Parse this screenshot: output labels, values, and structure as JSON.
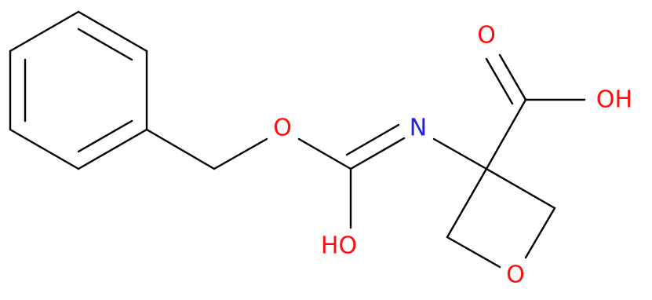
{
  "atoms": [
    {
      "label": "O"
    },
    {
      "label": "N"
    },
    {
      "label": "HO"
    },
    {
      "label": "O"
    },
    {
      "label": "OH"
    },
    {
      "label": "O"
    }
  ]
}
